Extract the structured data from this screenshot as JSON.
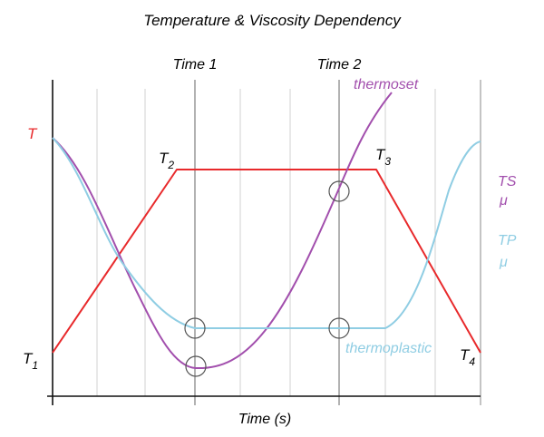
{
  "chart_data": {
    "type": "line",
    "title": "Temperature & Viscosity Dependency",
    "xlabel": "Time (s)",
    "x_axis_ticks": [],
    "y_axis_ticks": [],
    "grid": true,
    "markers": [
      {
        "label": "Time 1"
      },
      {
        "label": "Time 2"
      }
    ],
    "series": [
      {
        "key": "T",
        "name": "T",
        "color": "#e8292b"
      },
      {
        "key": "TS",
        "name": "thermoset",
        "axis_label": "TS",
        "axis_sublabel": "μ",
        "color": "#a24fad"
      },
      {
        "key": "TP",
        "name": "thermoplastic",
        "axis_label": "TP",
        "axis_sublabel": "μ",
        "color": "#8fcde3"
      }
    ],
    "point_labels": [
      {
        "main": "T",
        "sub": "1"
      },
      {
        "main": "T",
        "sub": "2"
      },
      {
        "main": "T",
        "sub": "3"
      },
      {
        "main": "T",
        "sub": "4"
      }
    ]
  }
}
